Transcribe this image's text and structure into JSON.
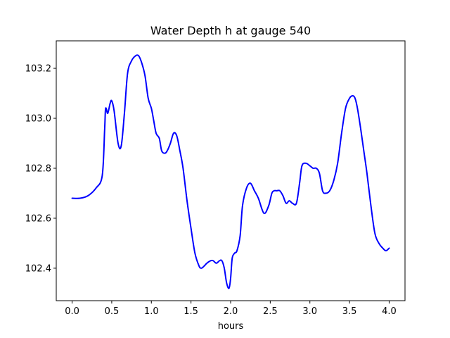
{
  "chart_data": {
    "type": "line",
    "title": "Water Depth h at gauge 540",
    "xlabel": "hours",
    "ylabel": "",
    "xlim": [
      -0.2,
      4.2
    ],
    "ylim": [
      102.27,
      103.31
    ],
    "xticks": [
      0.0,
      0.5,
      1.0,
      1.5,
      2.0,
      2.5,
      3.0,
      3.5,
      4.0
    ],
    "xtick_labels": [
      "0.0",
      "0.5",
      "1.0",
      "1.5",
      "2.0",
      "2.5",
      "3.0",
      "3.5",
      "4.0"
    ],
    "yticks": [
      102.4,
      102.6,
      102.8,
      103.0,
      103.2
    ],
    "ytick_labels": [
      "102.4",
      "102.6",
      "102.8",
      "103.0",
      "103.2"
    ],
    "grid": false,
    "legend": "none",
    "series": [
      {
        "color": "#0000ff",
        "x": [
          0.0,
          0.1,
          0.2,
          0.3,
          0.38,
          0.41,
          0.42,
          0.43,
          0.45,
          0.48,
          0.5,
          0.53,
          0.58,
          0.62,
          0.66,
          0.7,
          0.75,
          0.8,
          0.84,
          0.88,
          0.92,
          0.96,
          1.0,
          1.03,
          1.06,
          1.1,
          1.13,
          1.17,
          1.2,
          1.24,
          1.28,
          1.32,
          1.36,
          1.4,
          1.45,
          1.5,
          1.55,
          1.6,
          1.63,
          1.67,
          1.7,
          1.75,
          1.78,
          1.82,
          1.86,
          1.89,
          1.92,
          1.95,
          1.98,
          2.0,
          2.02,
          2.05,
          2.08,
          2.12,
          2.15,
          2.2,
          2.25,
          2.3,
          2.35,
          2.42,
          2.48,
          2.52,
          2.55,
          2.58,
          2.62,
          2.66,
          2.7,
          2.74,
          2.78,
          2.83,
          2.87,
          2.9,
          2.95,
          3.0,
          3.04,
          3.08,
          3.12,
          3.16,
          3.2,
          3.25,
          3.3,
          3.35,
          3.4,
          3.45,
          3.5,
          3.54,
          3.57,
          3.6,
          3.64,
          3.68,
          3.72,
          3.77,
          3.82,
          3.87,
          3.92,
          3.96,
          4.0
        ],
        "y": [
          102.68,
          102.68,
          102.69,
          102.72,
          102.77,
          102.95,
          103.03,
          103.04,
          103.02,
          103.06,
          103.07,
          103.03,
          102.9,
          102.89,
          103.02,
          103.18,
          103.23,
          103.25,
          103.25,
          103.22,
          103.17,
          103.08,
          103.04,
          102.99,
          102.94,
          102.92,
          102.87,
          102.86,
          102.87,
          102.9,
          102.94,
          102.93,
          102.87,
          102.8,
          102.67,
          102.56,
          102.46,
          102.41,
          102.4,
          102.41,
          102.42,
          102.43,
          102.43,
          102.42,
          102.43,
          102.43,
          102.4,
          102.34,
          102.32,
          102.36,
          102.44,
          102.46,
          102.47,
          102.53,
          102.65,
          102.72,
          102.74,
          102.71,
          102.68,
          102.62,
          102.65,
          102.7,
          102.71,
          102.71,
          102.71,
          102.69,
          102.66,
          102.67,
          102.66,
          102.66,
          102.74,
          102.81,
          102.82,
          102.81,
          102.8,
          102.8,
          102.78,
          102.71,
          102.7,
          102.71,
          102.75,
          102.82,
          102.94,
          103.04,
          103.08,
          103.09,
          103.08,
          103.04,
          102.96,
          102.87,
          102.78,
          102.65,
          102.54,
          102.5,
          102.48,
          102.47,
          102.48
        ]
      }
    ]
  }
}
